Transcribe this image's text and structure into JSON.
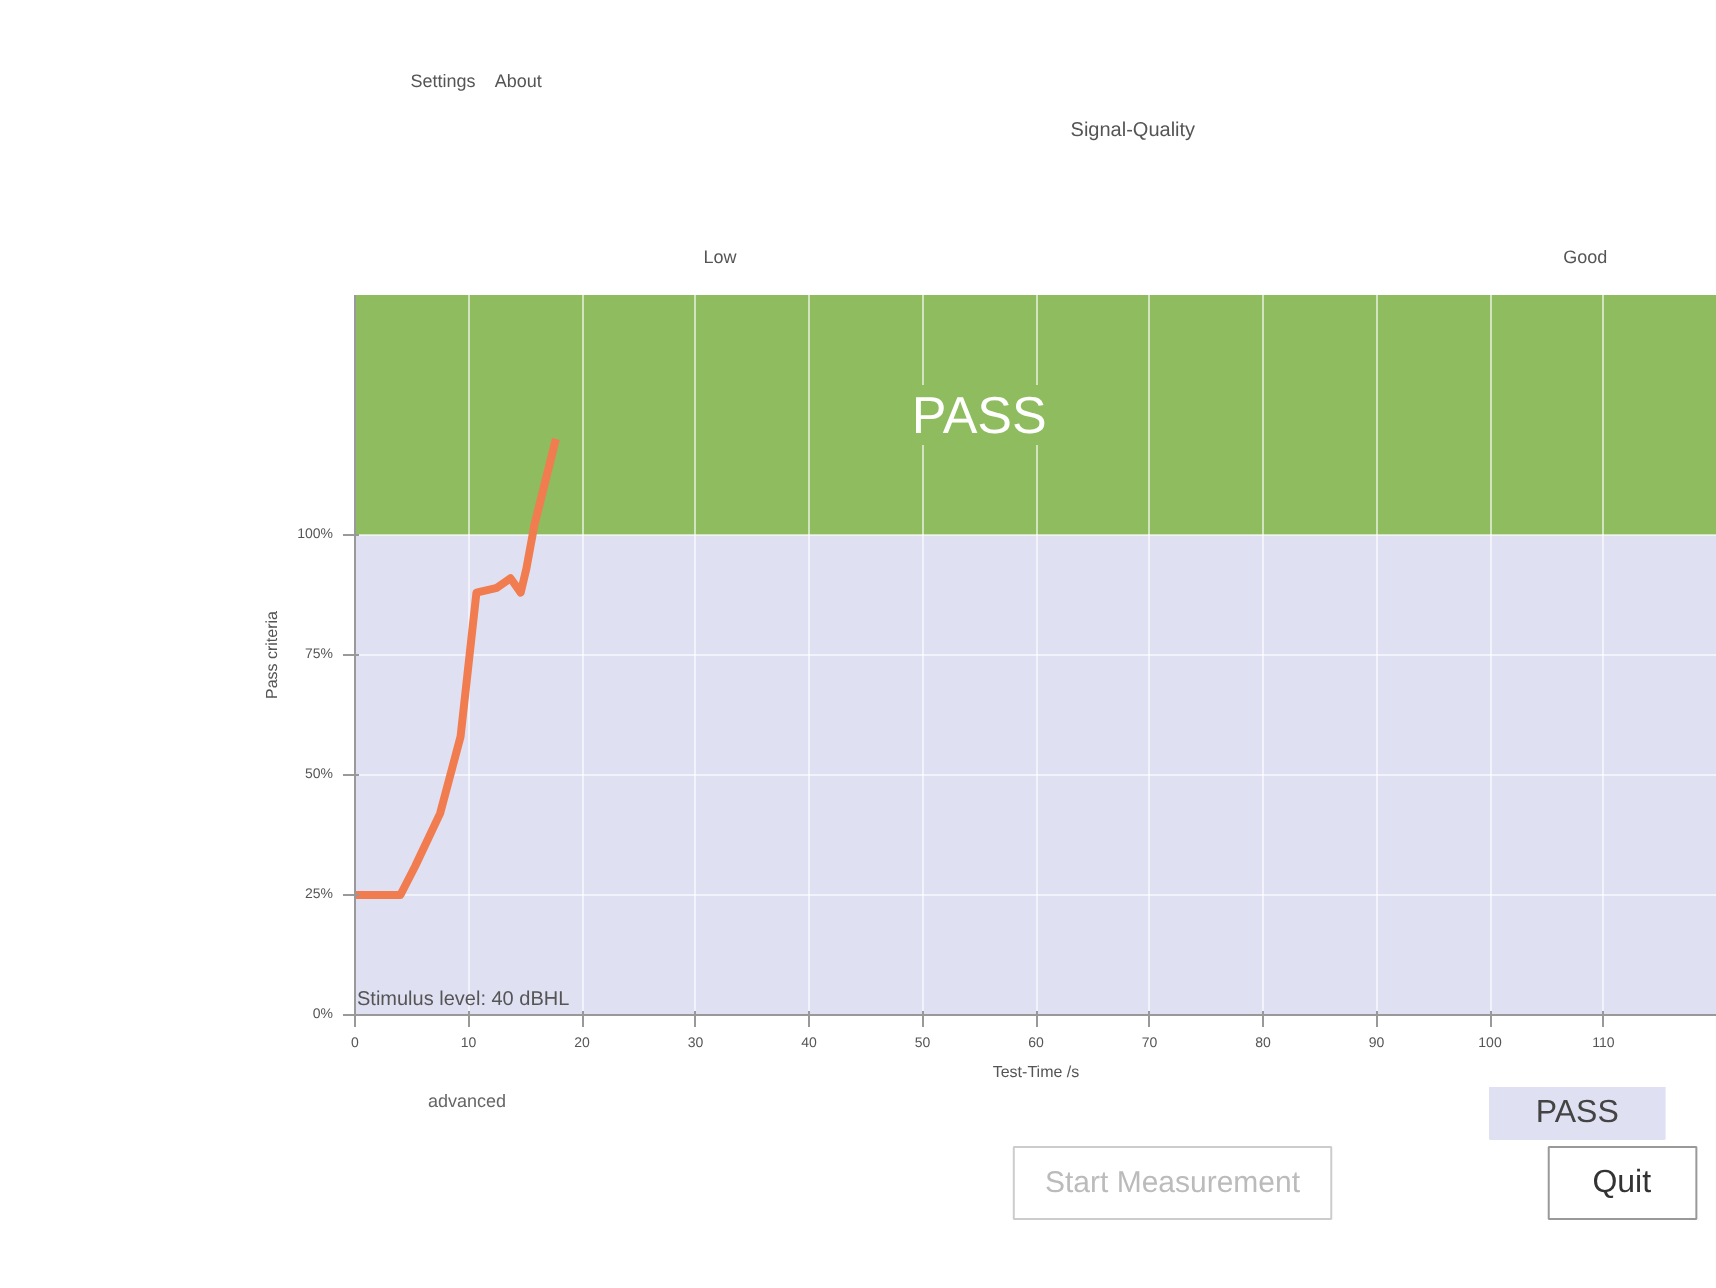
{
  "chart_data": [
    {
      "type": "other",
      "title": "Signal-Quality",
      "annotations": [
        "Low",
        "Good",
        "Settings",
        "About"
      ]
    },
    {
      "type": "line",
      "xlabel": "Test-Time /s",
      "ylabel": "Pass criteria",
      "x": [
        0,
        4.0,
        5.3,
        7.5,
        9.3,
        10.7,
        12.5,
        13.7,
        14.6,
        15.1,
        15.8,
        17.7
      ],
      "series": [
        {
          "color": "#f07c50",
          "values": [
            25,
            25,
            31,
            42,
            58,
            88,
            89,
            91,
            88,
            93,
            102,
            120
          ]
        }
      ],
      "xlim": [
        0,
        120
      ],
      "xticks": [
        0,
        10,
        20,
        30,
        40,
        50,
        60,
        70,
        80,
        90,
        100,
        110
      ],
      "ylim": [
        0,
        150
      ],
      "yticks": [
        {
          "value": 0,
          "label": "0%"
        },
        {
          "value": 25,
          "label": "25%"
        },
        {
          "value": 50,
          "label": "50%"
        },
        {
          "value": 75,
          "label": "75%"
        },
        {
          "value": 100,
          "label": "100%"
        }
      ],
      "bands": [
        {
          "axis": "y",
          "from": 0,
          "to": 100,
          "color": "#dfe1f3"
        },
        {
          "axis": "y",
          "from": 100,
          "to": 150,
          "label": "PASS",
          "color": "#8fbc5e"
        }
      ],
      "annotations": [
        "Stimulus level: 40 dBHL"
      ],
      "grid": true,
      "marker": "none",
      "line_style": "solid"
    },
    {
      "type": "other",
      "annotations": [
        "PASS",
        "Start Measurement",
        "Quit",
        "advanced"
      ]
    }
  ]
}
